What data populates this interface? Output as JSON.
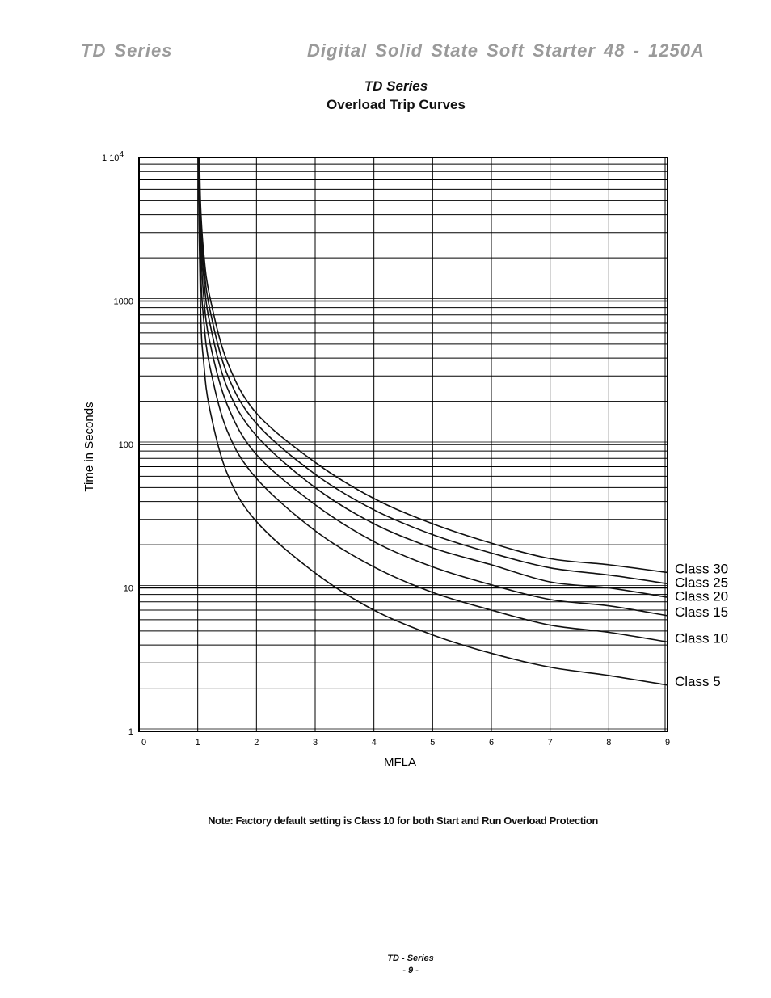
{
  "header": {
    "left": "TD Series",
    "right": "Digital Solid State Soft Starter 48 - 1250A"
  },
  "chart_title": {
    "line1": "TD Series",
    "line2": "Overload Trip Curves"
  },
  "note": "Note:  Factory default setting is Class 10  for both Start and Run Overload Protection",
  "footer": {
    "line1": "TD - Series",
    "line2": "- 9 -"
  },
  "chart_data": {
    "type": "line",
    "title": "Overload Trip Curves",
    "xlabel": "MFLA",
    "ylabel": "Time in Seconds",
    "xlim": [
      0,
      9
    ],
    "ylim": [
      1,
      10000
    ],
    "y_scale": "log",
    "grid": true,
    "x_ticks": [
      "0",
      "1",
      "2",
      "3",
      "4",
      "5",
      "6",
      "7",
      "8",
      "9"
    ],
    "y_tick_labels": [
      {
        "value": 10000,
        "label": "1  10",
        "sup": "4"
      },
      {
        "value": 1000,
        "label": "1000",
        "sup": ""
      },
      {
        "value": 100,
        "label": "100",
        "sup": ""
      },
      {
        "value": 10,
        "label": "10",
        "sup": ""
      },
      {
        "value": 1,
        "label": "1",
        "sup": ""
      }
    ],
    "series": [
      {
        "name": "Class 30",
        "x": [
          1.03,
          1.05,
          1.1,
          1.2,
          1.5,
          2,
          3,
          4,
          5,
          6,
          7,
          8,
          9
        ],
        "y": [
          10000,
          4500,
          2200,
          1100,
          380,
          165,
          75,
          42,
          28,
          20.5,
          16,
          14.5,
          12.8
        ]
      },
      {
        "name": "Class 25",
        "x": [
          1.02,
          1.05,
          1.1,
          1.2,
          1.5,
          2,
          3,
          4,
          5,
          6,
          7,
          8,
          9
        ],
        "y": [
          10000,
          4000,
          1850,
          900,
          310,
          140,
          62,
          35,
          23.5,
          17.5,
          13.8,
          12.3,
          10.7
        ]
      },
      {
        "name": "Class 20",
        "x": [
          1.02,
          1.05,
          1.1,
          1.2,
          1.5,
          2,
          3,
          4,
          5,
          6,
          7,
          8,
          9
        ],
        "y": [
          10000,
          3300,
          1500,
          720,
          250,
          115,
          50,
          28,
          19,
          14.5,
          11,
          10,
          8.6
        ]
      },
      {
        "name": "Class 15",
        "x": [
          1.01,
          1.05,
          1.1,
          1.2,
          1.5,
          2,
          3,
          4,
          5,
          6,
          7,
          8,
          9
        ],
        "y": [
          10000,
          2500,
          1100,
          530,
          190,
          85,
          38,
          21,
          14,
          10.5,
          8.3,
          7.5,
          6.4
        ]
      },
      {
        "name": "Class 10",
        "x": [
          1.01,
          1.05,
          1.1,
          1.2,
          1.5,
          2,
          3,
          4,
          5,
          6,
          7,
          8,
          9
        ],
        "y": [
          10000,
          1650,
          750,
          360,
          125,
          58,
          25,
          14,
          9.3,
          7,
          5.5,
          4.9,
          4.2
        ]
      },
      {
        "name": "Class 5",
        "x": [
          1.005,
          1.05,
          1.1,
          1.2,
          1.5,
          2,
          3,
          4,
          5,
          6,
          7,
          8,
          9
        ],
        "y": [
          10000,
          830,
          380,
          180,
          63,
          29,
          12.7,
          7,
          4.7,
          3.5,
          2.8,
          2.45,
          2.1
        ]
      }
    ]
  }
}
